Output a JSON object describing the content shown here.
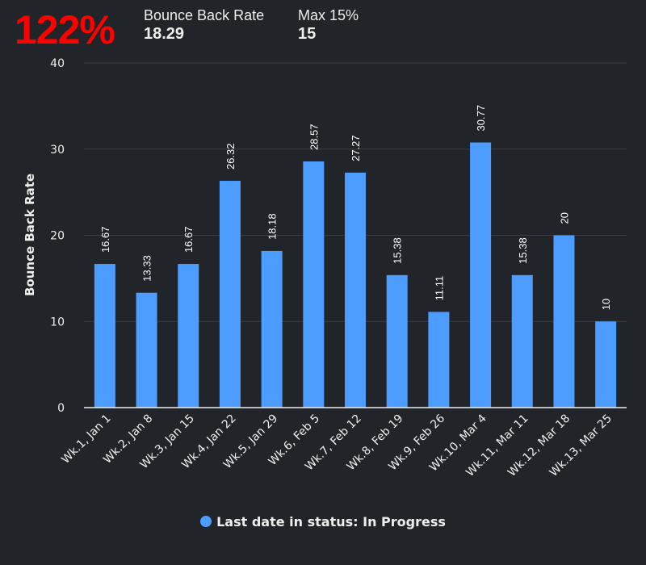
{
  "header": {
    "kpi": "122%",
    "stats": [
      {
        "label": "Bounce Back Rate",
        "value": "18.29"
      },
      {
        "label": "Max 15%",
        "value": "15"
      }
    ]
  },
  "chart_data": {
    "type": "bar",
    "categories": [
      "Wk.1, Jan 1",
      "Wk.2, Jan 8",
      "Wk.3, Jan 15",
      "Wk.4, Jan 22",
      "Wk.5, Jan 29",
      "Wk.6, Feb 5",
      "Wk.7, Feb 12",
      "Wk.8, Feb 19",
      "Wk.9, Feb 26",
      "Wk.10, Mar 4",
      "Wk.11, Mar 11",
      "Wk.12, Mar 18",
      "Wk.13, Mar 25"
    ],
    "series": [
      {
        "name": "Last date in status: In Progress",
        "values": [
          16.67,
          13.33,
          16.67,
          26.32,
          18.18,
          28.57,
          27.27,
          15.38,
          11.11,
          30.77,
          15.38,
          20,
          10
        ],
        "color": "#4d9cff"
      }
    ],
    "ylabel": "Bounce Back Rate",
    "xlabel": "",
    "ylim": [
      0,
      40
    ],
    "yticks": [
      0,
      10,
      20,
      30,
      40
    ],
    "grid": true,
    "legend": "bottom"
  }
}
